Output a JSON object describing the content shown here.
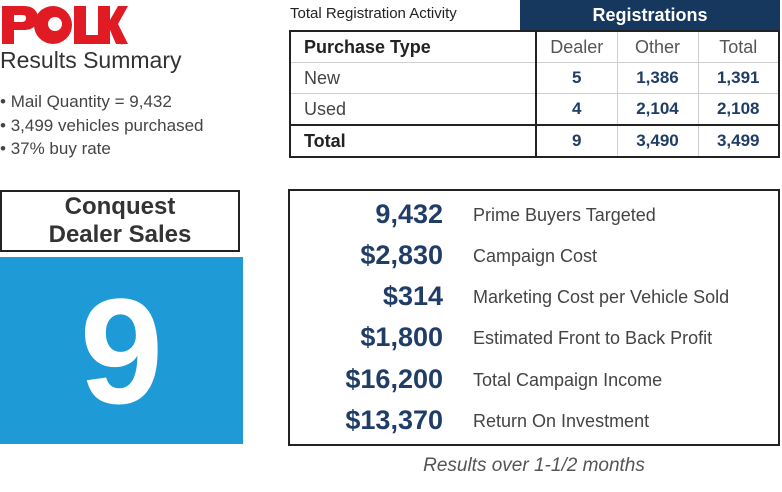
{
  "brand": {
    "logo_text": "POLK",
    "logo_color": "#e01b24"
  },
  "summary": {
    "title": "Results Summary",
    "bullets": [
      "Mail Quantity = 9,432",
      "3,499 vehicles purchased",
      "37% buy rate"
    ]
  },
  "registrations": {
    "activity_title": "Total Registration Activity",
    "header": "Registrations",
    "header_color": "#16375e",
    "columns": [
      "Purchase Type",
      "Dealer",
      "Other",
      "Total"
    ],
    "rows": [
      {
        "type": "New",
        "dealer": "5",
        "other": "1,386",
        "total": "1,391"
      },
      {
        "type": "Used",
        "dealer": "4",
        "other": "2,104",
        "total": "2,108"
      },
      {
        "type": "Total",
        "dealer": "9",
        "other": "3,490",
        "total": "3,499"
      }
    ]
  },
  "conquest": {
    "line1": "Conquest",
    "line2": "Dealer Sales",
    "value": "9",
    "color": "#1e9ad6"
  },
  "metrics": [
    {
      "value": "9,432",
      "label": "Prime Buyers Targeted"
    },
    {
      "value": "$2,830",
      "label": "Campaign Cost"
    },
    {
      "value": "$314",
      "label": "Marketing Cost per Vehicle Sold"
    },
    {
      "value": "$1,800",
      "label": "Estimated Front to Back Profit"
    },
    {
      "value": "$16,200",
      "label": "Total Campaign Income"
    },
    {
      "value": "$13,370",
      "label": "Return On Investment"
    }
  ],
  "footnote": "Results over 1-1/2 months"
}
